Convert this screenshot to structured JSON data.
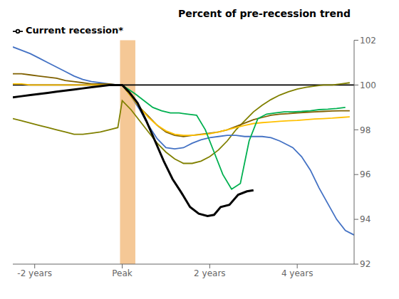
{
  "chart_data": {
    "type": "line",
    "title": "Percent of pre-recession trend",
    "xlim": [
      -2.5,
      5.3
    ],
    "xticks": [
      {
        "value": -2,
        "label": "-2 years"
      },
      {
        "value": 0,
        "label": "Peak"
      },
      {
        "value": 2,
        "label": "2 years"
      },
      {
        "value": 4,
        "label": "4 years"
      }
    ],
    "ylim": [
      92,
      102
    ],
    "yticks": [
      92,
      94,
      96,
      98,
      100,
      102
    ],
    "grid": false,
    "legend": "upper left",
    "spans": [
      {
        "x": [
          -0.05,
          0.3
        ],
        "color": "#f5c896"
      }
    ],
    "hlines": [
      {
        "y": 100,
        "color": "#000000"
      }
    ],
    "series": [
      {
        "color": "#808000",
        "x": [
          -2.5,
          -2.3,
          -2.1,
          -1.9,
          -1.7,
          -1.5,
          -1.3,
          -1.1,
          -0.9,
          -0.7,
          -0.5,
          -0.3,
          -0.1,
          0.0,
          0.2,
          0.4,
          0.6,
          0.8,
          1.0,
          1.2,
          1.4,
          1.6,
          1.8,
          2.0,
          2.2,
          2.4,
          2.6,
          2.8,
          3.0,
          3.2,
          3.4,
          3.6,
          3.8,
          4.0,
          4.2,
          4.4,
          4.6,
          4.8,
          5.0,
          5.2
        ],
        "values": [
          98.5,
          98.4,
          98.3,
          98.2,
          98.1,
          98.0,
          97.9,
          97.8,
          97.8,
          97.85,
          97.9,
          98.0,
          98.1,
          99.3,
          98.9,
          98.4,
          97.9,
          97.4,
          97.0,
          96.7,
          96.5,
          96.5,
          96.6,
          96.8,
          97.1,
          97.5,
          98.0,
          98.4,
          98.8,
          99.1,
          99.35,
          99.55,
          99.7,
          99.82,
          99.9,
          99.95,
          100.0,
          100.0,
          100.05,
          100.1
        ]
      },
      {
        "color": "#4472c4",
        "x": [
          -2.5,
          -2.3,
          -2.1,
          -1.9,
          -1.7,
          -1.5,
          -1.3,
          -1.1,
          -0.9,
          -0.7,
          -0.5,
          -0.3,
          -0.1,
          0.0,
          0.2,
          0.4,
          0.6,
          0.8,
          1.0,
          1.2,
          1.4,
          1.6,
          1.8,
          2.0,
          2.2,
          2.4,
          2.6,
          2.8,
          3.0,
          3.2,
          3.4,
          3.6,
          3.8,
          3.9,
          4.1,
          4.3,
          4.5,
          4.7,
          4.9,
          5.1,
          5.3
        ],
        "values": [
          101.7,
          101.55,
          101.4,
          101.2,
          101.0,
          100.8,
          100.6,
          100.4,
          100.25,
          100.15,
          100.1,
          100.05,
          100.0,
          100.0,
          99.5,
          98.9,
          98.2,
          97.6,
          97.2,
          97.15,
          97.2,
          97.4,
          97.55,
          97.65,
          97.7,
          97.75,
          97.75,
          97.7,
          97.7,
          97.7,
          97.65,
          97.5,
          97.3,
          97.2,
          96.8,
          96.2,
          95.4,
          94.7,
          94.0,
          93.5,
          93.3
        ]
      },
      {
        "color": "#7f6000",
        "x": [
          -2.5,
          -2.3,
          -2.1,
          -1.9,
          -1.7,
          -1.5,
          -1.3,
          -1.1,
          -0.9,
          -0.7,
          -0.5,
          -0.3,
          -0.1,
          0.0,
          0.2,
          0.4,
          0.6,
          0.8,
          1.0,
          1.2,
          1.4,
          1.6,
          1.8,
          2.0,
          2.2,
          2.4,
          2.6,
          2.8,
          3.0,
          3.2,
          3.4,
          3.6,
          3.8,
          4.0,
          4.2,
          4.4,
          4.6,
          4.8,
          5.0,
          5.2
        ],
        "values": [
          100.5,
          100.5,
          100.45,
          100.4,
          100.35,
          100.3,
          100.2,
          100.15,
          100.1,
          100.05,
          100.05,
          100.05,
          100.0,
          100.0,
          99.5,
          99.0,
          98.6,
          98.2,
          97.9,
          97.75,
          97.7,
          97.75,
          97.8,
          97.85,
          97.9,
          98.0,
          98.15,
          98.3,
          98.45,
          98.55,
          98.65,
          98.7,
          98.72,
          98.75,
          98.78,
          98.8,
          98.82,
          98.84,
          98.85,
          98.85
        ]
      },
      {
        "color": "#ffc000",
        "x": [
          -2.5,
          -2.3,
          -2.1,
          -1.9,
          -1.7,
          -1.5,
          -1.3,
          -1.1,
          -0.9,
          -0.7,
          -0.5,
          -0.3,
          -0.1,
          0.0,
          0.2,
          0.4,
          0.6,
          0.8,
          1.0,
          1.2,
          1.4,
          1.6,
          1.8,
          2.0,
          2.2,
          2.4,
          2.6,
          2.8,
          3.0,
          3.2,
          3.4,
          3.6,
          3.8,
          4.0,
          4.2,
          4.4,
          4.6,
          4.8,
          5.0,
          5.2
        ],
        "values": [
          100.05,
          100.05,
          100.0,
          100.0,
          100.0,
          100.0,
          100.0,
          100.0,
          100.0,
          100.0,
          100.0,
          100.0,
          100.0,
          100.0,
          99.5,
          99.0,
          98.55,
          98.2,
          97.95,
          97.8,
          97.75,
          97.75,
          97.78,
          97.82,
          97.9,
          98.0,
          98.1,
          98.2,
          98.28,
          98.32,
          98.35,
          98.38,
          98.4,
          98.42,
          98.45,
          98.48,
          98.5,
          98.52,
          98.55,
          98.58
        ]
      },
      {
        "color": "#00b050",
        "x": [
          0.0,
          0.15,
          0.3,
          0.5,
          0.7,
          0.9,
          1.1,
          1.3,
          1.5,
          1.7,
          1.9,
          2.1,
          2.3,
          2.5,
          2.7,
          2.9,
          3.1,
          3.3,
          3.5,
          3.7,
          3.9,
          4.1,
          4.3,
          4.5,
          4.7,
          4.9,
          5.1
        ],
        "values": [
          100.0,
          99.8,
          99.6,
          99.3,
          99.0,
          98.85,
          98.75,
          98.75,
          98.7,
          98.65,
          98.0,
          97.0,
          96.0,
          95.35,
          95.6,
          97.5,
          98.5,
          98.7,
          98.75,
          98.8,
          98.8,
          98.82,
          98.85,
          98.9,
          98.92,
          98.95,
          99.0
        ]
      },
      {
        "name": "Current recession*",
        "color": "#000000",
        "x": [
          -2.5,
          -2.3,
          -2.1,
          -1.9,
          -1.7,
          -1.5,
          -1.3,
          -1.1,
          -0.9,
          -0.7,
          -0.5,
          -0.3,
          -0.1,
          0.0,
          0.15,
          0.35,
          0.55,
          0.75,
          0.95,
          1.15,
          1.35,
          1.55,
          1.75,
          1.95,
          2.1,
          2.25,
          2.45,
          2.65,
          2.85,
          3.0
        ],
        "values": [
          99.45,
          99.5,
          99.55,
          99.6,
          99.65,
          99.7,
          99.75,
          99.8,
          99.85,
          99.9,
          99.95,
          100.0,
          100.0,
          100.0,
          99.7,
          99.2,
          98.4,
          97.5,
          96.6,
          95.8,
          95.2,
          94.55,
          94.25,
          94.15,
          94.2,
          94.55,
          94.65,
          95.1,
          95.25,
          95.3
        ]
      }
    ]
  }
}
